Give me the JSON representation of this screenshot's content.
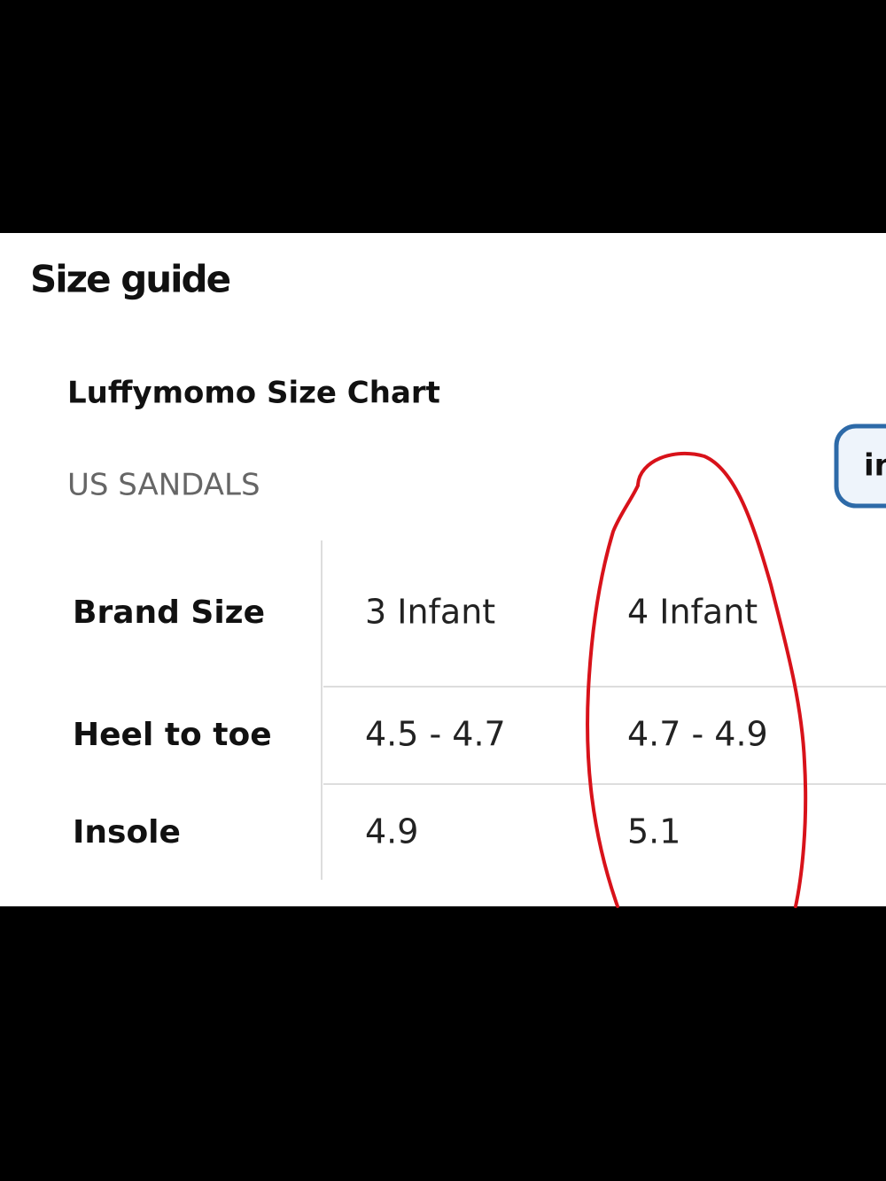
{
  "header": {
    "title": "Size guide"
  },
  "chart_title": "Luffymomo Size Chart",
  "section": "US SANDALS",
  "unit_button": "in",
  "table": {
    "rows": [
      [
        "Brand Size",
        "3 Infant",
        "4 Infant"
      ],
      [
        "Heel to toe",
        "4.5 - 4.7",
        "4.7 - 4.9"
      ],
      [
        "Insole",
        "4.9",
        "5.1"
      ]
    ]
  }
}
